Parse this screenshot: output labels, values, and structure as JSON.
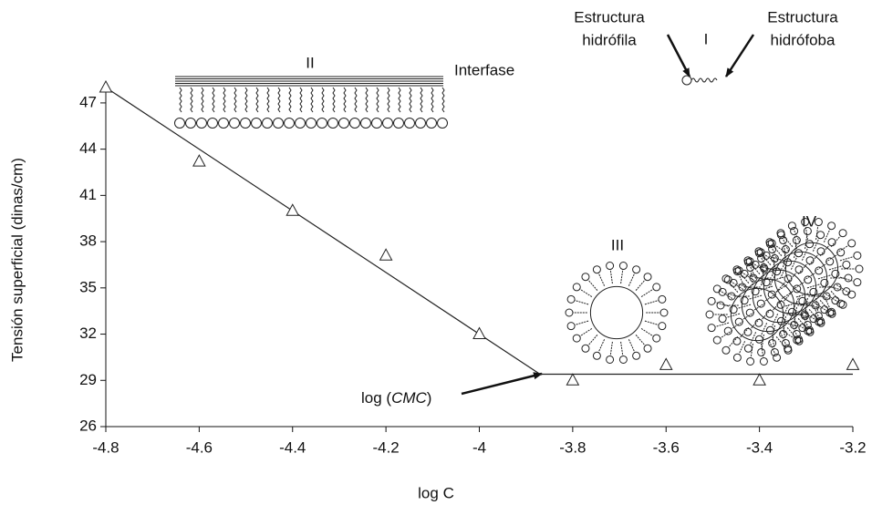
{
  "chart_data": {
    "type": "scatter",
    "x_label": "log C",
    "y_label": "Tensión superficial (dinas/cm)",
    "x": [
      -4.8,
      -4.6,
      -4.4,
      -4.2,
      -4.0,
      -3.8,
      -3.6,
      -3.4,
      -3.2
    ],
    "values": [
      48,
      43.2,
      40.0,
      37.1,
      32.0,
      29.0,
      30.0,
      29.0,
      30.0
    ],
    "color": "#222222",
    "lines": [
      {
        "x": [
          -4.8,
          -3.87
        ],
        "values": [
          48,
          29.4
        ]
      },
      {
        "x": [
          -3.87,
          -3.2
        ],
        "values": [
          29.4,
          29.4
        ]
      }
    ],
    "xlim": [
      -4.8,
      -3.2
    ],
    "ylim": [
      26,
      48
    ],
    "xticks": [
      -4.8,
      -4.6,
      -4.4,
      -4.2,
      -4,
      -3.8,
      -3.6,
      -3.4,
      -3.2
    ],
    "yticks": [
      26,
      29,
      32,
      35,
      38,
      41,
      44,
      47
    ],
    "annotations": {
      "cmc": [
        "log (",
        "CMC",
        ")"
      ],
      "region_1": "I",
      "region_2": "II",
      "region_3": "III",
      "region_4": "IV",
      "interface": "Interfase",
      "hydrophilic": [
        "Estructura",
        "hidrófila"
      ],
      "hydrophobic": [
        "Estructura",
        "hidrófoba"
      ]
    }
  }
}
